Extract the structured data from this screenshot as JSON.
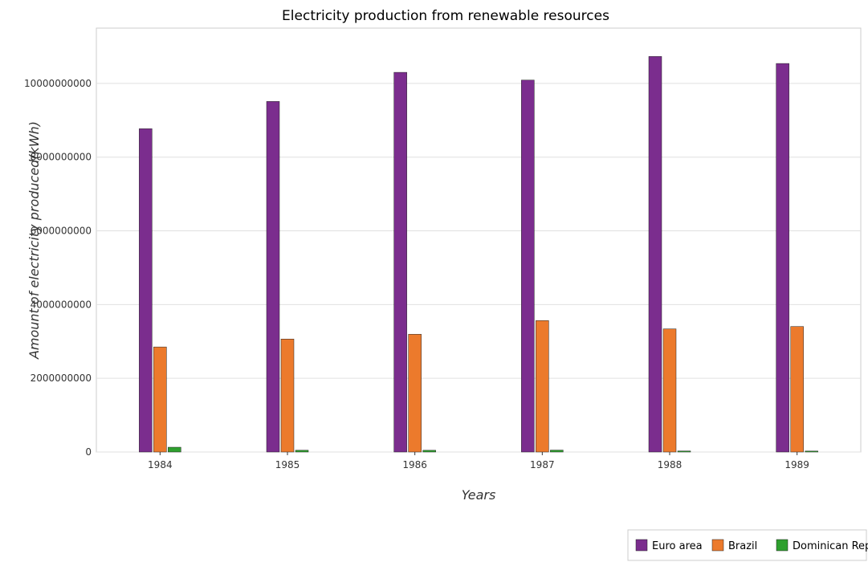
{
  "chart_data": {
    "type": "bar",
    "title": "Electricity production from renewable resources",
    "xlabel": "Years",
    "ylabel": "Amount of electricity produced(kWh)",
    "categories": [
      "1984",
      "1985",
      "1986",
      "1987",
      "1988",
      "1989"
    ],
    "ylim": [
      0,
      11500000000
    ],
    "yticks": [
      0,
      2000000000,
      4000000000,
      6000000000,
      8000000000,
      10000000000
    ],
    "ytick_labels": [
      "0",
      "2000000000",
      "4000000000",
      "6000000000",
      "8000000000",
      "10000000000"
    ],
    "grid": true,
    "legend_position": "bottom-right",
    "series": [
      {
        "name": "Euro area",
        "color": "#7b2d8e",
        "values": [
          8770000000,
          9510000000,
          10300000000,
          10090000000,
          10730000000,
          10540000000
        ]
      },
      {
        "name": "Brazil",
        "color": "#ec7a2c",
        "values": [
          2850000000,
          3065000000,
          3195000000,
          3565000000,
          3340000000,
          3405000000
        ]
      },
      {
        "name": "Dominican Republic",
        "color": "#2ea02e",
        "values": [
          130000000,
          48000000,
          47000000,
          52000000,
          28000000,
          26000000
        ]
      }
    ]
  }
}
